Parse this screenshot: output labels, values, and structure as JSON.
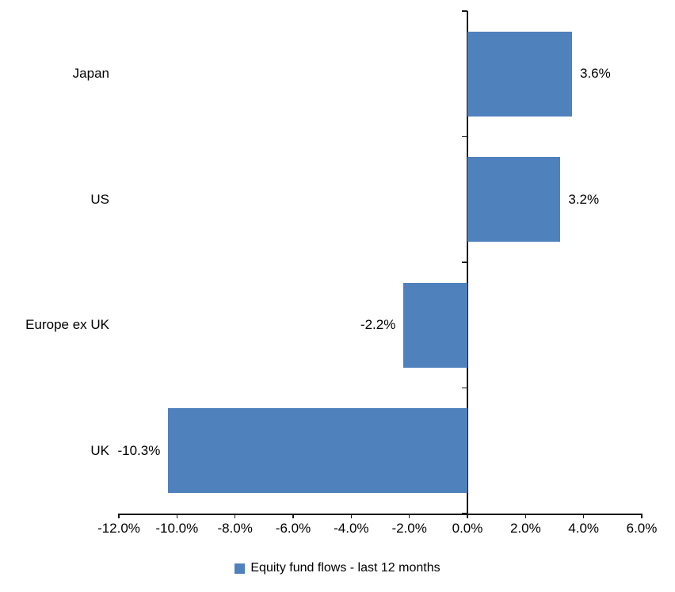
{
  "chart_data": {
    "type": "bar",
    "orientation": "horizontal",
    "title": "",
    "categories": [
      "Japan",
      "US",
      "Europe ex UK",
      "UK"
    ],
    "series": [
      {
        "name": "Equity fund flows - last 12 months",
        "values": [
          3.6,
          3.2,
          -2.2,
          -10.3
        ]
      }
    ],
    "value_labels": [
      "3.6%",
      "3.2%",
      "-2.2%",
      "-10.3%"
    ],
    "xlim": [
      -12,
      6
    ],
    "x_tick_step": 2,
    "x_tick_values": [
      -12,
      -10,
      -8,
      -6,
      -4,
      -2,
      0,
      2,
      4,
      6
    ],
    "x_tick_labels": [
      "-12.0%",
      "-10.0%",
      "-8.0%",
      "-6.0%",
      "-4.0%",
      "-2.0%",
      "0.0%",
      "2.0%",
      "4.0%",
      "6.0%"
    ],
    "grid": false,
    "bar_color": "#4F81BD",
    "axis_color": "#1a1a1a",
    "legend": {
      "position": "bottom",
      "label": "Equity fund flows - last 12 months"
    }
  }
}
